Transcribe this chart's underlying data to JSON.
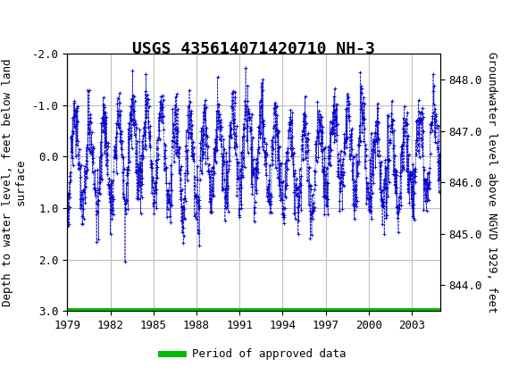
{
  "title": "USGS 435614071420710 NH-3",
  "ylabel_left": "Depth to water level, feet below land\nsurface",
  "ylabel_right": "Groundwater level above NGVD 1929, feet",
  "xlim": [
    1979,
    2005
  ],
  "ylim_left": [
    3.0,
    -2.0
  ],
  "ylim_right": [
    843.5,
    848.5
  ],
  "yticks_left": [
    3.0,
    2.0,
    1.0,
    0.0,
    -1.0,
    -2.0
  ],
  "yticks_right": [
    844.0,
    845.0,
    846.0,
    847.0,
    848.0
  ],
  "xticks": [
    1979,
    1982,
    1985,
    1988,
    1991,
    1994,
    1997,
    2000,
    2003
  ],
  "header_color": "#006633",
  "header_text_color": "#ffffff",
  "plot_bg_color": "#ffffff",
  "grid_color": "#c0c0c0",
  "data_color": "#0000cc",
  "approved_line_color": "#00bb00",
  "legend_label": "Period of approved data",
  "title_fontsize": 13,
  "axis_label_fontsize": 9,
  "tick_fontsize": 9
}
